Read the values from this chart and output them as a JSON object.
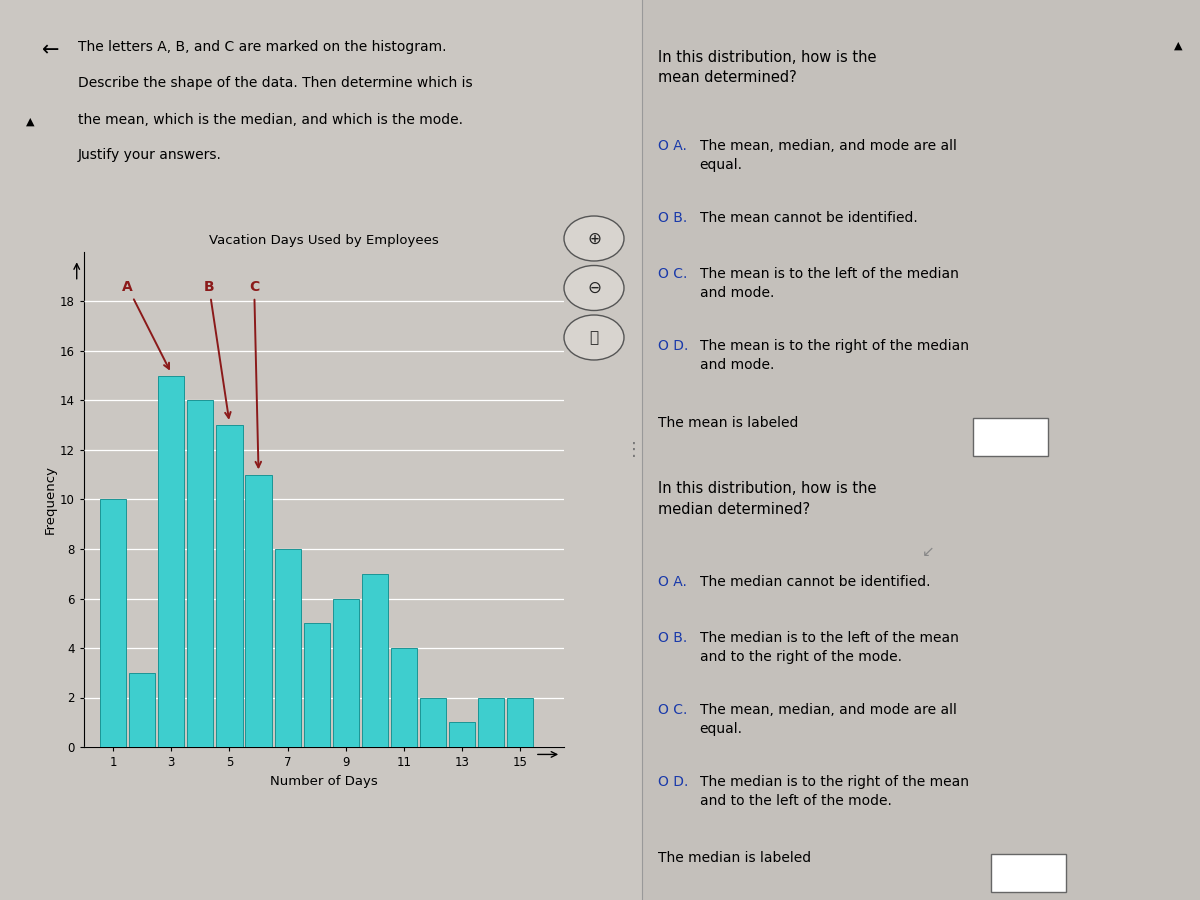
{
  "title": "Vacation Days Used by Employees",
  "xlabel": "Number of Days",
  "ylabel": "Frequency",
  "bar_x": [
    1,
    2,
    3,
    4,
    5,
    6,
    7,
    8,
    9,
    10,
    11,
    12,
    13,
    14,
    15
  ],
  "bar_heights": [
    10,
    3,
    15,
    14,
    13,
    11,
    8,
    5,
    6,
    7,
    4,
    2,
    1,
    2,
    2
  ],
  "bar_color": "#3ecece",
  "bar_edge_color": "#1a9595",
  "ylim": [
    0,
    20
  ],
  "xlim": [
    0.0,
    16.5
  ],
  "yticks": [
    0,
    2,
    4,
    6,
    8,
    10,
    12,
    14,
    16,
    18
  ],
  "xticks": [
    1,
    3,
    5,
    7,
    9,
    11,
    13,
    15
  ],
  "arrow_color": "#8B1A1A",
  "bg_color": "#cbc7c2",
  "right_panel_bg": "#c4c0bb",
  "text_color_blue": "#1a3aaa",
  "left_title_line1": "The letters A, B, and C are marked on the histogram.",
  "left_title_line2": "Describe the shape of the data. Then determine which is",
  "left_title_line3": "the mean, which is the median, and which is the mode.",
  "left_title_line4": "Justify your answers.",
  "right_q1_head": "In this distribution, how is the\nmean determined?",
  "right_q1_A": "The mean, median, and mode are all\nequal.",
  "right_q1_B": "The mean cannot be identified.",
  "right_q1_C": "The mean is to the left of the median\nand mode.",
  "right_q1_D": "The mean is to the right of the median\nand mode.",
  "mean_label_text": "The mean is labeled",
  "right_q2_head": "In this distribution, how is the\nmedian determined?",
  "right_q2_A": "The median cannot be identified.",
  "right_q2_B": "The median is to the left of the mean\nand to the right of the mode.",
  "right_q2_C": "The mean, median, and mode are all\nequal.",
  "right_q2_D": "The median is to the right of the mean\nand to the left of the mode.",
  "median_label_text": "The median is labeled"
}
